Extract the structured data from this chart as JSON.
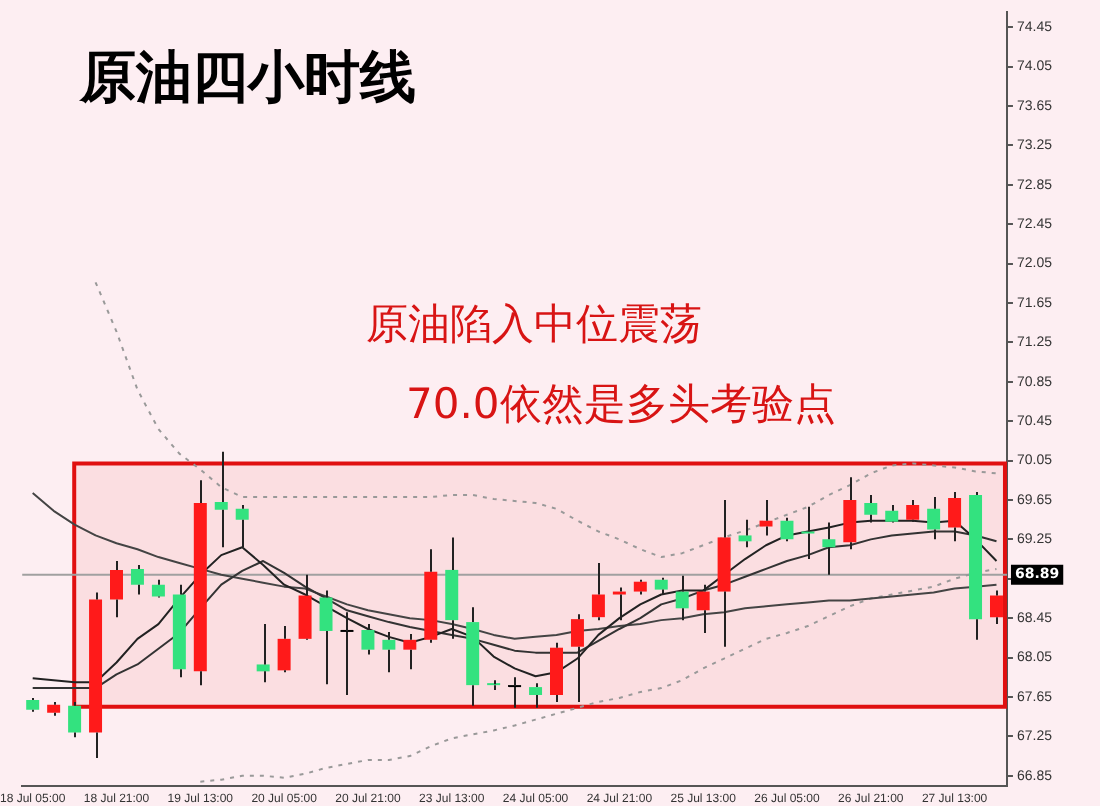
{
  "chart_data": {
    "type": "candlestick",
    "title": "原油四小时线",
    "annotations": [
      "原油陷入中位震荡",
      "70.0依然是多头考验点"
    ],
    "categories": [
      "18 Jul 05:00",
      null,
      null,
      null,
      "18 Jul 21:00",
      null,
      null,
      null,
      "19 Jul 13:00",
      null,
      null,
      null,
      "20 Jul 05:00",
      null,
      null,
      null,
      "20 Jul 21:00",
      null,
      null,
      null,
      "23 Jul 13:00",
      null,
      null,
      null,
      "24 Jul 05:00",
      null,
      null,
      null,
      "24 Jul 21:00",
      null,
      null,
      null,
      "25 Jul 13:00",
      null,
      null,
      null,
      "26 Jul 05:00",
      null,
      null,
      null,
      "26 Jul 21:00",
      null,
      null,
      null,
      "27 Jul 13:00",
      null,
      null
    ],
    "ohlc": [
      [
        67.62,
        67.64,
        67.5,
        67.52
      ],
      [
        67.49,
        67.6,
        67.46,
        67.57
      ],
      [
        67.56,
        67.6,
        67.24,
        67.29
      ],
      [
        67.29,
        68.71,
        67.03,
        68.64
      ],
      [
        68.64,
        69.03,
        68.46,
        68.94
      ],
      [
        68.95,
        68.99,
        68.69,
        68.79
      ],
      [
        68.79,
        68.84,
        68.66,
        68.67
      ],
      [
        68.69,
        68.79,
        67.85,
        67.93
      ],
      [
        67.91,
        69.85,
        67.77,
        69.62
      ],
      [
        69.63,
        70.14,
        69.17,
        69.55
      ],
      [
        69.56,
        69.6,
        69.17,
        69.45
      ],
      [
        67.98,
        68.39,
        67.8,
        67.91
      ],
      [
        67.92,
        68.37,
        67.9,
        68.24
      ],
      [
        68.24,
        68.89,
        68.23,
        68.68
      ],
      [
        68.66,
        68.73,
        67.78,
        68.32
      ],
      [
        68.32,
        68.51,
        67.67,
        68.31
      ],
      [
        68.33,
        68.39,
        68.08,
        68.13
      ],
      [
        68.23,
        68.31,
        67.9,
        68.13
      ],
      [
        68.13,
        68.29,
        67.93,
        68.23
      ],
      [
        68.23,
        69.15,
        68.2,
        68.92
      ],
      [
        68.94,
        69.27,
        68.24,
        68.43
      ],
      [
        68.41,
        68.56,
        67.56,
        67.77
      ],
      [
        67.78,
        67.82,
        67.72,
        67.77
      ],
      [
        67.76,
        67.85,
        67.54,
        67.75
      ],
      [
        67.75,
        67.79,
        67.54,
        67.67
      ],
      [
        67.67,
        68.2,
        67.6,
        68.15
      ],
      [
        68.16,
        68.49,
        67.6,
        68.44
      ],
      [
        68.46,
        69.01,
        68.43,
        68.69
      ],
      [
        68.69,
        68.76,
        68.43,
        68.72
      ],
      [
        68.72,
        68.84,
        68.69,
        68.82
      ],
      [
        68.84,
        68.86,
        68.69,
        68.74
      ],
      [
        68.72,
        68.88,
        68.43,
        68.55
      ],
      [
        68.53,
        68.79,
        68.3,
        68.72
      ],
      [
        68.72,
        69.65,
        68.16,
        69.27
      ],
      [
        69.29,
        69.45,
        69.17,
        69.23
      ],
      [
        69.38,
        69.65,
        69.29,
        69.44
      ],
      [
        69.44,
        69.47,
        69.23,
        69.25
      ],
      [
        69.33,
        69.58,
        69.05,
        69.31
      ],
      [
        69.25,
        69.42,
        68.89,
        69.17
      ],
      [
        69.22,
        69.88,
        69.15,
        69.65
      ],
      [
        69.62,
        69.7,
        69.42,
        69.5
      ],
      [
        69.54,
        69.6,
        69.42,
        69.43
      ],
      [
        69.45,
        69.65,
        69.43,
        69.6
      ],
      [
        69.56,
        69.68,
        69.25,
        69.35
      ],
      [
        69.37,
        69.73,
        69.23,
        69.67
      ],
      [
        69.7,
        69.73,
        68.23,
        68.44
      ],
      [
        68.46,
        68.73,
        68.39,
        68.68
      ]
    ],
    "colors": [
      "#33e27f",
      "#ff1a1a",
      "#33e27f",
      "#ff1a1a",
      "#ff1a1a",
      "#33e27f",
      "#33e27f",
      "#33e27f",
      "#ff1a1a",
      "#33e27f",
      "#33e27f",
      "#33e27f",
      "#ff1a1a",
      "#ff1a1a",
      "#33e27f",
      "#000000",
      "#33e27f",
      "#33e27f",
      "#ff1a1a",
      "#ff1a1a",
      "#33e27f",
      "#33e27f",
      "#33e27f",
      "#000000",
      "#33e27f",
      "#ff1a1a",
      "#ff1a1a",
      "#ff1a1a",
      "#ff1a1a",
      "#ff1a1a",
      "#33e27f",
      "#33e27f",
      "#ff1a1a",
      "#ff1a1a",
      "#33e27f",
      "#ff1a1a",
      "#33e27f",
      "#33e27f",
      "#33e27f",
      "#ff1a1a",
      "#33e27f",
      "#33e27f",
      "#ff1a1a",
      "#33e27f",
      "#ff1a1a",
      "#33e27f",
      "#ff1a1a"
    ],
    "series": [
      {
        "type": "line",
        "color": "#222222",
        "values": [
          67.84,
          67.82,
          67.8,
          67.8,
          68.0,
          68.24,
          68.39,
          68.65,
          68.89,
          69.09,
          69.17,
          68.99,
          68.79,
          68.69,
          68.57,
          68.45,
          68.34,
          68.26,
          68.2,
          68.26,
          68.34,
          68.26,
          68.06,
          67.94,
          67.86,
          67.9,
          68.04,
          68.28,
          68.45,
          68.59,
          68.69,
          68.73,
          68.73,
          68.89,
          69.05,
          69.19,
          69.29,
          69.33,
          69.37,
          69.42,
          69.44,
          69.44,
          69.44,
          69.42,
          69.44,
          69.25,
          69.03
        ]
      },
      {
        "type": "line",
        "color": "#333333",
        "values": [
          67.74,
          67.74,
          67.74,
          67.74,
          67.88,
          67.98,
          68.14,
          68.3,
          68.55,
          68.79,
          68.93,
          69.03,
          68.91,
          68.77,
          68.65,
          68.53,
          68.47,
          68.41,
          68.36,
          68.32,
          68.28,
          68.24,
          68.18,
          68.12,
          68.1,
          68.1,
          68.1,
          68.22,
          68.34,
          68.45,
          68.59,
          68.65,
          68.73,
          68.79,
          68.87,
          68.95,
          69.03,
          69.09,
          69.17,
          69.19,
          69.25,
          69.29,
          69.31,
          69.33,
          69.33,
          69.29,
          69.23
        ]
      },
      {
        "type": "line",
        "color": "#444444",
        "values": [
          69.72,
          69.54,
          69.4,
          69.29,
          69.21,
          69.15,
          69.07,
          69.01,
          68.95,
          68.89,
          68.85,
          68.81,
          68.77,
          68.75,
          68.67,
          68.59,
          68.53,
          68.49,
          68.45,
          68.43,
          68.39,
          68.34,
          68.28,
          68.24,
          68.26,
          68.28,
          68.32,
          68.34,
          68.37,
          68.39,
          68.43,
          68.45,
          68.49,
          68.51,
          68.55,
          68.57,
          68.59,
          68.61,
          68.63,
          68.63,
          68.65,
          68.67,
          68.69,
          68.71,
          68.75,
          68.77,
          68.79
        ]
      },
      {
        "type": "line",
        "color": "#999999",
        "line_style": "dotted",
        "values": [
          null,
          null,
          null,
          71.86,
          71.36,
          70.77,
          70.37,
          70.12,
          69.96,
          69.78,
          69.68,
          69.68,
          69.68,
          69.68,
          69.68,
          69.68,
          69.68,
          69.68,
          69.68,
          69.68,
          69.7,
          69.7,
          69.66,
          69.64,
          69.62,
          69.56,
          69.44,
          69.33,
          69.25,
          69.15,
          69.07,
          69.11,
          69.19,
          69.27,
          69.34,
          69.42,
          69.5,
          69.58,
          69.7,
          69.8,
          69.92,
          70.0,
          70.02,
          70.0,
          69.98,
          69.94,
          69.92
        ]
      },
      {
        "type": "line",
        "color": "#999999",
        "line_style": "dotted",
        "values": [
          null,
          null,
          null,
          null,
          null,
          null,
          null,
          null,
          66.79,
          66.81,
          66.85,
          66.85,
          66.83,
          66.87,
          66.93,
          66.97,
          67.01,
          67.01,
          67.05,
          67.15,
          67.23,
          67.27,
          67.31,
          67.36,
          67.42,
          67.48,
          67.54,
          67.6,
          67.64,
          67.7,
          67.74,
          67.82,
          67.94,
          68.04,
          68.14,
          68.24,
          68.3,
          68.37,
          68.47,
          68.57,
          68.65,
          68.69,
          68.73,
          68.77,
          68.85,
          68.91,
          68.95
        ]
      }
    ],
    "ylim": [
      66.75,
      74.6
    ],
    "yticks": [
      66.85,
      67.25,
      67.65,
      68.05,
      68.45,
      {
        "value": 68.85,
        "label": null
      },
      69.25,
      69.65,
      70.05,
      70.45,
      70.85,
      71.25,
      71.65,
      72.05,
      72.45,
      72.85,
      73.25,
      73.65,
      74.05,
      74.45
    ],
    "ref_lines": [
      {
        "axis": "y",
        "value": 68.89,
        "label": "68.89",
        "color": "#a0a0a0"
      }
    ],
    "bands": [
      {
        "axis": "y",
        "from": 67.55,
        "to": 70.02,
        "color": "#e01010"
      }
    ]
  }
}
